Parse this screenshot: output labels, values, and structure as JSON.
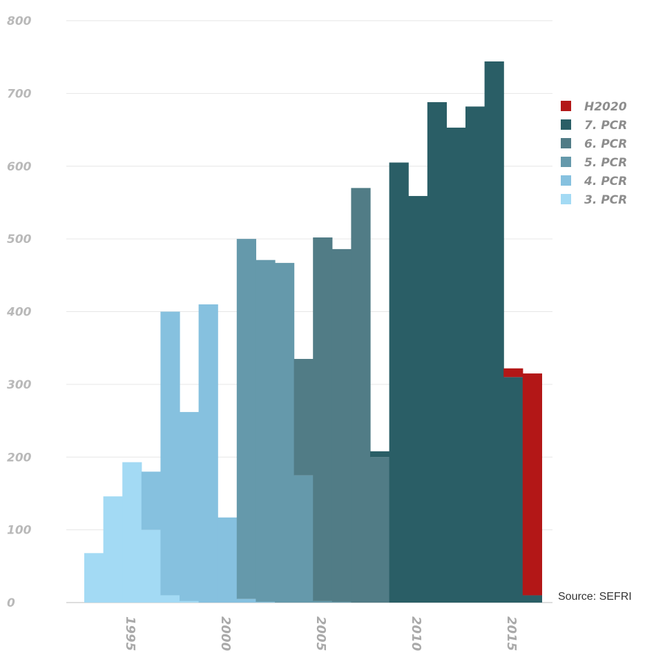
{
  "chart_data": {
    "type": "bar",
    "stacked": true,
    "title": "",
    "xlabel": "",
    "ylabel": "",
    "ylim": [
      0,
      800
    ],
    "yticks": [
      0,
      100,
      200,
      300,
      400,
      500,
      600,
      700,
      800
    ],
    "grid": true,
    "legend_position": "right",
    "x_years": [
      1993,
      1994,
      1995,
      1996,
      1997,
      1998,
      1999,
      2000,
      2001,
      2002,
      2003,
      2004,
      2005,
      2006,
      2007,
      2008,
      2009,
      2010,
      2011,
      2012,
      2013,
      2014,
      2015
    ],
    "xtick_labels": [
      {
        "year": 1995,
        "label": "1995"
      },
      {
        "year": 2000,
        "label": "2000"
      },
      {
        "year": 2005,
        "label": "2005"
      },
      {
        "year": 2010,
        "label": "2010"
      },
      {
        "year": 2015,
        "label": "2015"
      }
    ],
    "series": [
      {
        "name": "3. PCR",
        "color": "#a3daf4",
        "values": [
          68,
          146,
          193,
          100,
          10,
          2,
          0,
          0,
          0,
          0,
          0,
          0,
          0,
          0,
          0,
          0,
          0,
          0,
          0,
          0,
          0,
          0,
          0
        ]
      },
      {
        "name": "4. PCR",
        "color": "#86c1df",
        "values": [
          0,
          0,
          0,
          80,
          390,
          260,
          410,
          117,
          5,
          1,
          0,
          0,
          0,
          0,
          0,
          0,
          0,
          0,
          0,
          0,
          0,
          0,
          0
        ]
      },
      {
        "name": "5. PCR",
        "color": "#6599ab",
        "values": [
          0,
          0,
          0,
          0,
          0,
          0,
          0,
          0,
          495,
          470,
          467,
          175,
          2,
          1,
          0,
          0,
          0,
          0,
          0,
          0,
          0,
          0,
          0
        ]
      },
      {
        "name": "6. PCR",
        "color": "#517c86",
        "values": [
          0,
          0,
          0,
          0,
          0,
          0,
          0,
          0,
          0,
          0,
          0,
          160,
          500,
          485,
          570,
          200,
          0,
          0,
          0,
          0,
          0,
          0,
          0
        ]
      },
      {
        "name": "7. PCR",
        "color": "#2a5e66",
        "values": [
          0,
          0,
          0,
          0,
          0,
          0,
          0,
          0,
          0,
          0,
          0,
          0,
          0,
          0,
          0,
          8,
          605,
          559,
          688,
          653,
          682,
          744,
          310
        ]
      },
      {
        "name": "H2020",
        "color": "#b31717",
        "values": [
          0,
          0,
          0,
          0,
          0,
          0,
          0,
          0,
          0,
          0,
          0,
          0,
          0,
          0,
          0,
          0,
          0,
          0,
          0,
          0,
          0,
          0,
          12
        ]
      }
    ],
    "extra_bars": [
      {
        "year": 2016,
        "series": "7. PCR",
        "value": 10
      },
      {
        "year": 2016,
        "series": "H2020",
        "value": 305
      }
    ]
  },
  "legend_order": [
    "H2020",
    "7. PCR",
    "6. PCR",
    "5. PCR",
    "4. PCR",
    "3. PCR"
  ],
  "source_text": "Source: SEFRI"
}
